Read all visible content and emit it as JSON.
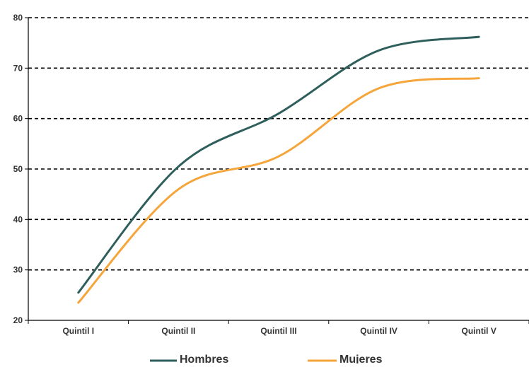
{
  "chart_data": {
    "type": "line",
    "title": "",
    "xlabel": "",
    "ylabel": "",
    "categories": [
      "Quintil I",
      "Quintil II",
      "Quintil III",
      "Quintil IV",
      "Quintil V"
    ],
    "ylim": [
      20,
      80
    ],
    "yticks": [
      "20",
      "30",
      "40",
      "50",
      "60",
      "70",
      "80"
    ],
    "grid": "horizontal dashed",
    "legend_position": "bottom",
    "series": [
      {
        "name": "Hombres",
        "color": "#2e5f5c",
        "values": [
          25.5,
          50.5,
          61,
          73.5,
          76.2
        ]
      },
      {
        "name": "Mujeres",
        "color": "#f5a53a",
        "values": [
          23.5,
          46,
          52.5,
          66,
          68
        ]
      }
    ]
  },
  "legend": {
    "hombres": "Hombres",
    "mujeres": "Mujeres"
  }
}
